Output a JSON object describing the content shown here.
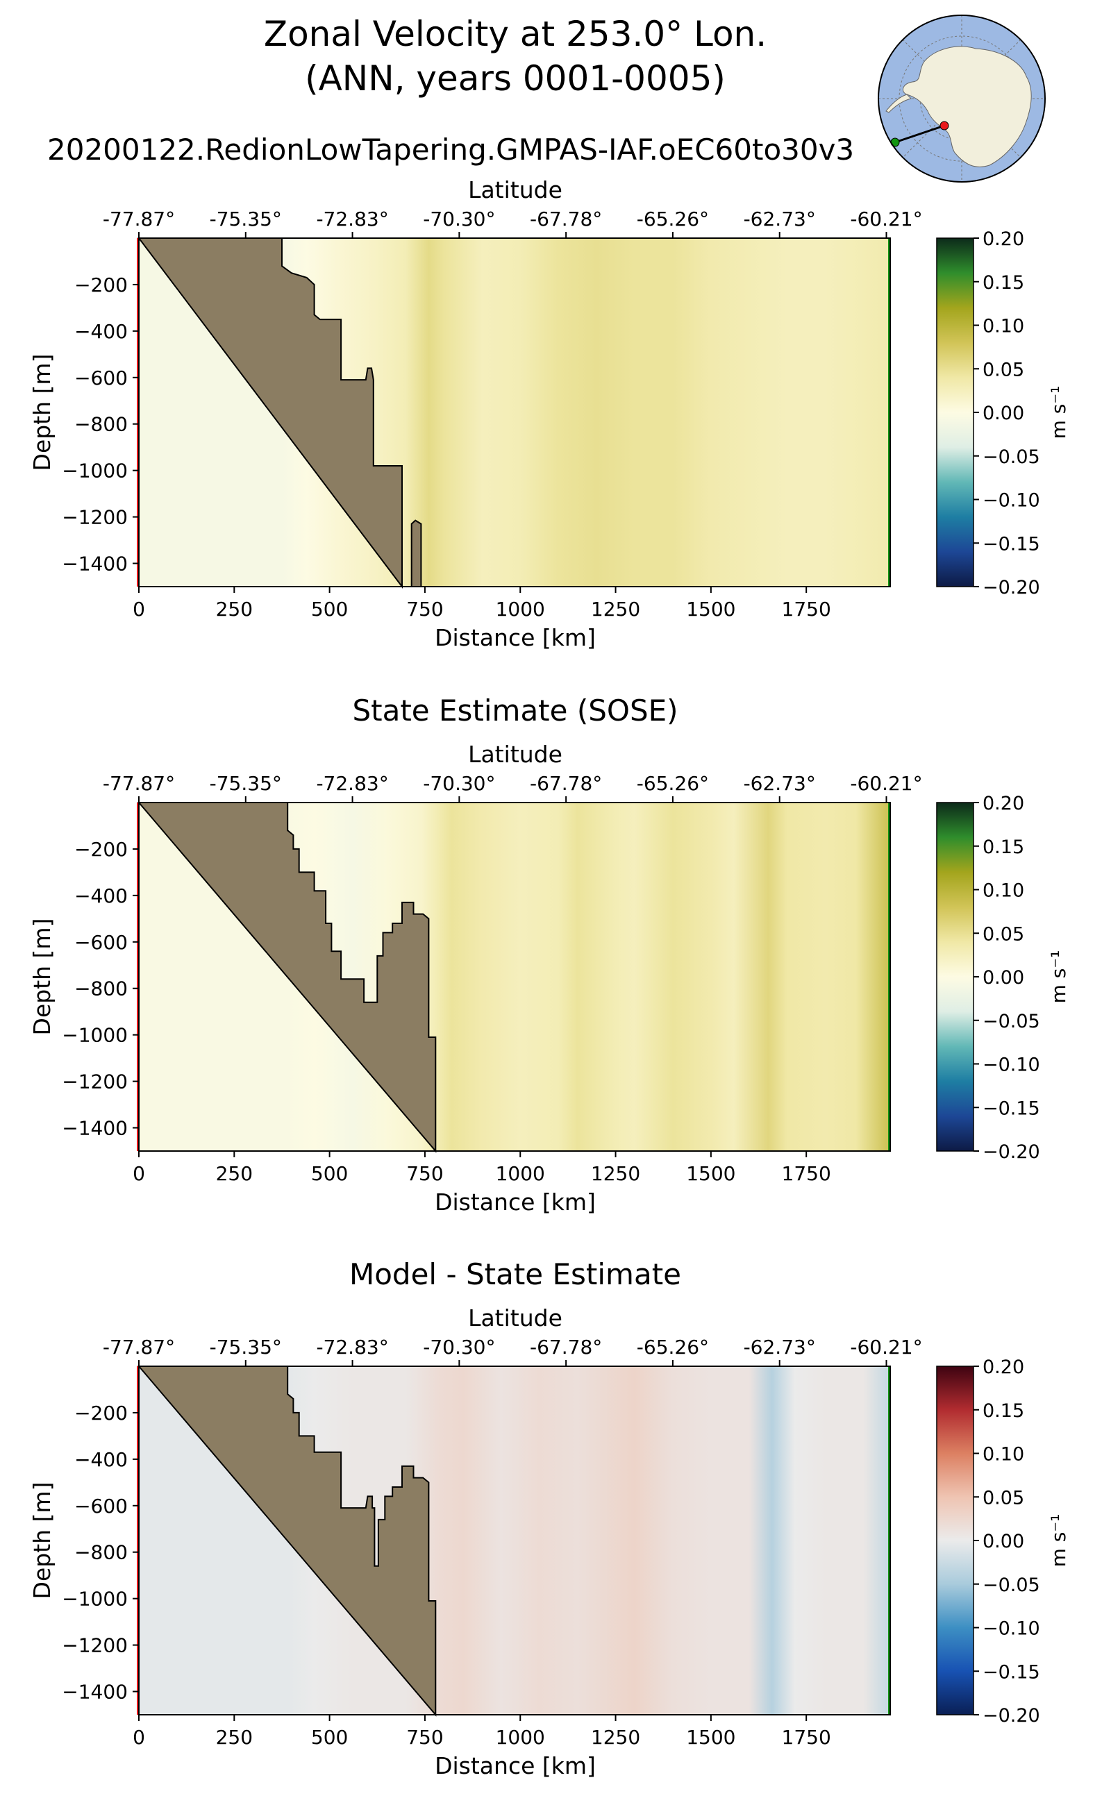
{
  "figure": {
    "title_line1": "Zonal Velocity at 253.0° Lon.",
    "title_line2": "(ANN, years 0001-0005)",
    "run_name": "20200122.RedionLowTapering.GMPAS-IAF.oEC60to30v3"
  },
  "colors": {
    "land": "#8b7d62",
    "start_marker": "#e8191c",
    "end_marker": "#129612",
    "inset_ocean": "#9db9e3",
    "inset_land": "#f2efdc"
  },
  "colormaps": {
    "velocity": [
      "#0d1a45",
      "#1d4796",
      "#1e7ea3",
      "#62b8b6",
      "#dfeee5",
      "#fdfbe3",
      "#f0e8a6",
      "#d1c457",
      "#a3a51d",
      "#2f8d2c",
      "#0c2a1a"
    ],
    "difference": [
      "#0a1f55",
      "#1852b3",
      "#3d8fc3",
      "#a9cbdc",
      "#ebebeb",
      "#efc4b2",
      "#dc8062",
      "#b12c30",
      "#3e0311"
    ]
  },
  "chart_data": [
    {
      "type": "heatmap",
      "title": "",
      "xlabel": "Distance [km]",
      "ylabel": "Depth [m]",
      "top_xlabel": "Latitude",
      "xlim": [
        0,
        1970
      ],
      "ylim": [
        -1500,
        0
      ],
      "x_ticks": [
        "0",
        "250",
        "500",
        "750",
        "1000",
        "1250",
        "1500",
        "1750"
      ],
      "x_tick_values": [
        0,
        250,
        500,
        750,
        1000,
        1250,
        1500,
        1750
      ],
      "y_ticks": [
        "−200",
        "−400",
        "−600",
        "−800",
        "−1000",
        "−1200",
        "−1400"
      ],
      "y_tick_values": [
        -200,
        -400,
        -600,
        -800,
        -1000,
        -1200,
        -1400
      ],
      "lat_ticks": [
        "-77.87°",
        "-75.35°",
        "-72.83°",
        "-70.30°",
        "-67.78°",
        "-65.26°",
        "-62.73°",
        "-60.21°"
      ],
      "lat_tick_positions_km": [
        0,
        280,
        560,
        840,
        1120,
        1400,
        1680,
        1960
      ],
      "colorbar": {
        "label": "m s⁻¹",
        "cmap": "velocity",
        "vmin": -0.2,
        "vmax": 0.2,
        "ticks": [
          "0.20",
          "0.15",
          "0.10",
          "0.05",
          "0.00",
          "−0.05",
          "−0.10",
          "−0.15",
          "−0.20"
        ]
      },
      "bathymetry": [
        [
          0,
          0
        ],
        [
          375,
          0
        ],
        [
          375,
          -120
        ],
        [
          400,
          -150
        ],
        [
          440,
          -170
        ],
        [
          460,
          -200
        ],
        [
          460,
          -330
        ],
        [
          475,
          -350
        ],
        [
          530,
          -350
        ],
        [
          530,
          -610
        ],
        [
          595,
          -610
        ],
        [
          600,
          -560
        ],
        [
          610,
          -560
        ],
        [
          615,
          -610
        ],
        [
          615,
          -980
        ],
        [
          690,
          -980
        ],
        [
          690,
          -1500
        ]
      ],
      "seamount": [
        [
          715,
          -1500
        ],
        [
          715,
          -1230
        ],
        [
          725,
          -1215
        ],
        [
          740,
          -1230
        ],
        [
          740,
          -1500
        ]
      ],
      "columns": [
        {
          "x": 375,
          "v": -0.01
        },
        {
          "x": 440,
          "v": 0.0
        },
        {
          "x": 520,
          "v": 0.01
        },
        {
          "x": 620,
          "v": 0.02
        },
        {
          "x": 700,
          "v": 0.03
        },
        {
          "x": 760,
          "v": 0.055
        },
        {
          "x": 800,
          "v": 0.045
        },
        {
          "x": 900,
          "v": 0.025
        },
        {
          "x": 1000,
          "v": 0.03
        },
        {
          "x": 1100,
          "v": 0.045
        },
        {
          "x": 1200,
          "v": 0.05
        },
        {
          "x": 1300,
          "v": 0.045
        },
        {
          "x": 1400,
          "v": 0.045
        },
        {
          "x": 1500,
          "v": 0.035
        },
        {
          "x": 1600,
          "v": 0.03
        },
        {
          "x": 1700,
          "v": 0.025
        },
        {
          "x": 1800,
          "v": 0.025
        },
        {
          "x": 1900,
          "v": 0.03
        },
        {
          "x": 1970,
          "v": 0.035
        }
      ]
    },
    {
      "type": "heatmap",
      "title": "State Estimate (SOSE)",
      "xlabel": "Distance [km]",
      "ylabel": "Depth [m]",
      "top_xlabel": "Latitude",
      "xlim": [
        0,
        1970
      ],
      "ylim": [
        -1500,
        0
      ],
      "x_ticks": [
        "0",
        "250",
        "500",
        "750",
        "1000",
        "1250",
        "1500",
        "1750"
      ],
      "x_tick_values": [
        0,
        250,
        500,
        750,
        1000,
        1250,
        1500,
        1750
      ],
      "y_ticks": [
        "−200",
        "−400",
        "−600",
        "−800",
        "−1000",
        "−1200",
        "−1400"
      ],
      "y_tick_values": [
        -200,
        -400,
        -600,
        -800,
        -1000,
        -1200,
        -1400
      ],
      "lat_ticks": [
        "-77.87°",
        "-75.35°",
        "-72.83°",
        "-70.30°",
        "-67.78°",
        "-65.26°",
        "-62.73°",
        "-60.21°"
      ],
      "lat_tick_positions_km": [
        0,
        280,
        560,
        840,
        1120,
        1400,
        1680,
        1960
      ],
      "colorbar": {
        "label": "m s⁻¹",
        "cmap": "velocity",
        "vmin": -0.2,
        "vmax": 0.2,
        "ticks": [
          "0.20",
          "0.15",
          "0.10",
          "0.05",
          "0.00",
          "−0.05",
          "−0.10",
          "−0.15",
          "−0.20"
        ]
      },
      "bathymetry": [
        [
          0,
          0
        ],
        [
          390,
          0
        ],
        [
          390,
          -120
        ],
        [
          405,
          -140
        ],
        [
          405,
          -200
        ],
        [
          420,
          -200
        ],
        [
          420,
          -300
        ],
        [
          460,
          -300
        ],
        [
          460,
          -380
        ],
        [
          490,
          -380
        ],
        [
          490,
          -520
        ],
        [
          505,
          -520
        ],
        [
          505,
          -640
        ],
        [
          530,
          -640
        ],
        [
          530,
          -760
        ],
        [
          590,
          -760
        ],
        [
          590,
          -860
        ],
        [
          625,
          -860
        ],
        [
          625,
          -660
        ],
        [
          640,
          -660
        ],
        [
          640,
          -560
        ],
        [
          665,
          -560
        ],
        [
          665,
          -520
        ],
        [
          690,
          -520
        ],
        [
          690,
          -430
        ],
        [
          720,
          -430
        ],
        [
          720,
          -480
        ],
        [
          745,
          -480
        ],
        [
          760,
          -500
        ],
        [
          760,
          -1010
        ],
        [
          778,
          -1010
        ],
        [
          778,
          -1500
        ]
      ],
      "seamount": [],
      "columns": [
        {
          "x": 390,
          "v": -0.005
        },
        {
          "x": 460,
          "v": 0.0
        },
        {
          "x": 560,
          "v": -0.01
        },
        {
          "x": 650,
          "v": 0.005
        },
        {
          "x": 740,
          "v": 0.015
        },
        {
          "x": 780,
          "v": 0.03
        },
        {
          "x": 820,
          "v": 0.045
        },
        {
          "x": 900,
          "v": 0.035
        },
        {
          "x": 1000,
          "v": 0.025
        },
        {
          "x": 1100,
          "v": 0.03
        },
        {
          "x": 1150,
          "v": 0.045
        },
        {
          "x": 1250,
          "v": 0.03
        },
        {
          "x": 1300,
          "v": 0.025
        },
        {
          "x": 1400,
          "v": 0.045
        },
        {
          "x": 1500,
          "v": 0.035
        },
        {
          "x": 1560,
          "v": 0.025
        },
        {
          "x": 1650,
          "v": 0.06
        },
        {
          "x": 1700,
          "v": 0.04
        },
        {
          "x": 1800,
          "v": 0.035
        },
        {
          "x": 1880,
          "v": 0.04
        },
        {
          "x": 1970,
          "v": 0.085
        }
      ]
    },
    {
      "type": "heatmap",
      "title": "Model - State Estimate",
      "xlabel": "Distance [km]",
      "ylabel": "Depth [m]",
      "top_xlabel": "Latitude",
      "xlim": [
        0,
        1970
      ],
      "ylim": [
        -1500,
        0
      ],
      "x_ticks": [
        "0",
        "250",
        "500",
        "750",
        "1000",
        "1250",
        "1500",
        "1750"
      ],
      "x_tick_values": [
        0,
        250,
        500,
        750,
        1000,
        1250,
        1500,
        1750
      ],
      "y_ticks": [
        "−200",
        "−400",
        "−600",
        "−800",
        "−1000",
        "−1200",
        "−1400"
      ],
      "y_tick_values": [
        -200,
        -400,
        -600,
        -800,
        -1000,
        -1200,
        -1400
      ],
      "lat_ticks": [
        "-77.87°",
        "-75.35°",
        "-72.83°",
        "-70.30°",
        "-67.78°",
        "-65.26°",
        "-62.73°",
        "-60.21°"
      ],
      "lat_tick_positions_km": [
        0,
        280,
        560,
        840,
        1120,
        1400,
        1680,
        1960
      ],
      "colorbar": {
        "label": "m s⁻¹",
        "cmap": "difference",
        "vmin": -0.2,
        "vmax": 0.2,
        "ticks": [
          "0.20",
          "0.15",
          "0.10",
          "0.05",
          "0.00",
          "−0.05",
          "−0.10",
          "−0.15",
          "−0.20"
        ]
      },
      "bathymetry": [
        [
          0,
          0
        ],
        [
          390,
          0
        ],
        [
          390,
          -120
        ],
        [
          405,
          -140
        ],
        [
          405,
          -200
        ],
        [
          420,
          -200
        ],
        [
          420,
          -300
        ],
        [
          460,
          -300
        ],
        [
          460,
          -370
        ],
        [
          530,
          -370
        ],
        [
          530,
          -610
        ],
        [
          595,
          -610
        ],
        [
          600,
          -560
        ],
        [
          612,
          -560
        ],
        [
          612,
          -610
        ],
        [
          618,
          -610
        ],
        [
          618,
          -860
        ],
        [
          628,
          -860
        ],
        [
          628,
          -660
        ],
        [
          645,
          -660
        ],
        [
          645,
          -560
        ],
        [
          665,
          -560
        ],
        [
          665,
          -520
        ],
        [
          690,
          -520
        ],
        [
          690,
          -430
        ],
        [
          720,
          -430
        ],
        [
          720,
          -480
        ],
        [
          745,
          -480
        ],
        [
          760,
          -500
        ],
        [
          760,
          -1010
        ],
        [
          778,
          -1010
        ],
        [
          778,
          -1500
        ]
      ],
      "seamount": [],
      "columns": [
        {
          "x": 390,
          "v": -0.005
        },
        {
          "x": 460,
          "v": 0.0
        },
        {
          "x": 560,
          "v": 0.005
        },
        {
          "x": 700,
          "v": 0.005
        },
        {
          "x": 790,
          "v": 0.02
        },
        {
          "x": 850,
          "v": 0.025
        },
        {
          "x": 950,
          "v": 0.01
        },
        {
          "x": 1050,
          "v": 0.02
        },
        {
          "x": 1150,
          "v": 0.015
        },
        {
          "x": 1300,
          "v": 0.03
        },
        {
          "x": 1400,
          "v": 0.015
        },
        {
          "x": 1500,
          "v": 0.01
        },
        {
          "x": 1600,
          "v": 0.01
        },
        {
          "x": 1660,
          "v": -0.04
        },
        {
          "x": 1720,
          "v": 0.0
        },
        {
          "x": 1800,
          "v": 0.005
        },
        {
          "x": 1900,
          "v": 0.005
        },
        {
          "x": 1970,
          "v": -0.03
        }
      ]
    }
  ]
}
